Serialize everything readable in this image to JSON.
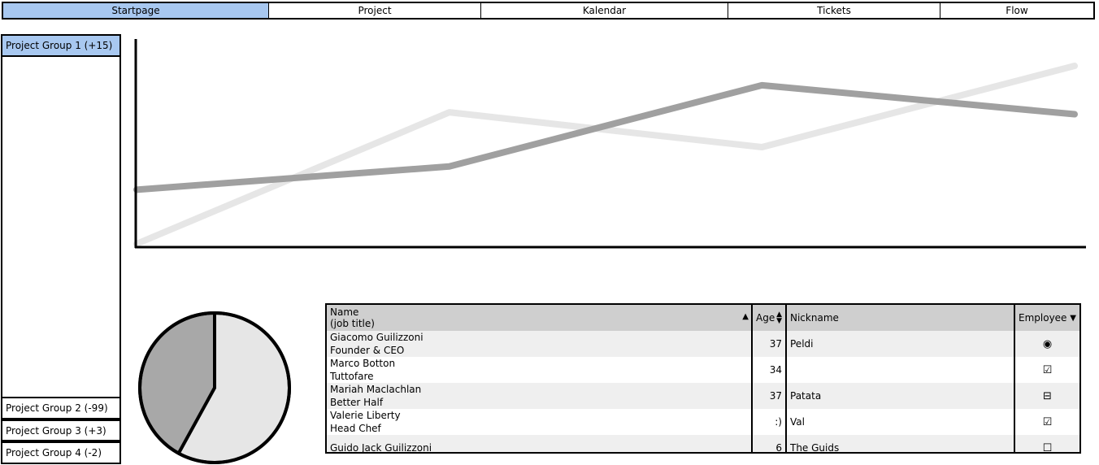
{
  "tabs": [
    {
      "label": "Startpage",
      "active": true
    },
    {
      "label": "Project",
      "active": false
    },
    {
      "label": "Kalendar",
      "active": false
    },
    {
      "label": "Tickets",
      "active": false
    },
    {
      "label": "Flow",
      "active": false
    }
  ],
  "sidebar": {
    "items": [
      {
        "label": "Project Group 1 (+15)",
        "active": true
      },
      {
        "label": "Project Group 2 (-99)",
        "active": false
      },
      {
        "label": "Project Group 3 (+3)",
        "active": false
      },
      {
        "label": "Project Group 4 (-2)",
        "active": false
      }
    ]
  },
  "colors": {
    "accent": "#a8c8f0",
    "series_dark": "#a0a0a0",
    "series_light": "#e6e6e6",
    "pie_dark": "#a8a8a8",
    "pie_light": "#e6e6e6"
  },
  "chart_data": [
    {
      "type": "line",
      "x": [
        0,
        1,
        2,
        3
      ],
      "ylim": [
        0,
        100
      ],
      "grid": false,
      "series": [
        {
          "values": [
            0,
            68,
            50,
            92
          ]
        },
        {
          "values": [
            28,
            40,
            82,
            67
          ]
        }
      ]
    },
    {
      "type": "pie",
      "values": [
        58,
        42
      ]
    }
  ],
  "table": {
    "columns": {
      "name_line1": "Name",
      "name_line2": "(job title)",
      "age": "Age",
      "nickname": "Nickname",
      "employee": "Employee"
    },
    "rows": [
      {
        "name": "Giacomo Guilizzoni",
        "title": "Founder & CEO",
        "age": "37",
        "nickname": "Peldi",
        "employee_icon": "radio-selected-icon",
        "employee_glyph": "◉"
      },
      {
        "name": "Marco Botton",
        "title": "Tuttofare",
        "age": "34",
        "nickname": "",
        "employee_icon": "checkbox-checked-icon",
        "employee_glyph": "☑"
      },
      {
        "name": "Mariah Maclachlan",
        "title": "Better Half",
        "age": "37",
        "nickname": "Patata",
        "employee_icon": "checkbox-indeterminate-icon",
        "employee_glyph": "⊟"
      },
      {
        "name": "Valerie Liberty",
        "title": "Head Chef",
        "age": ":)",
        "nickname": "Val",
        "employee_icon": "checkbox-checked-icon",
        "employee_glyph": "☑"
      },
      {
        "name": "Guido Jack Guilizzoni",
        "title": "",
        "age": "6",
        "nickname": "The Guids",
        "employee_icon": "checkbox-empty-icon",
        "employee_glyph": "☐"
      }
    ]
  }
}
